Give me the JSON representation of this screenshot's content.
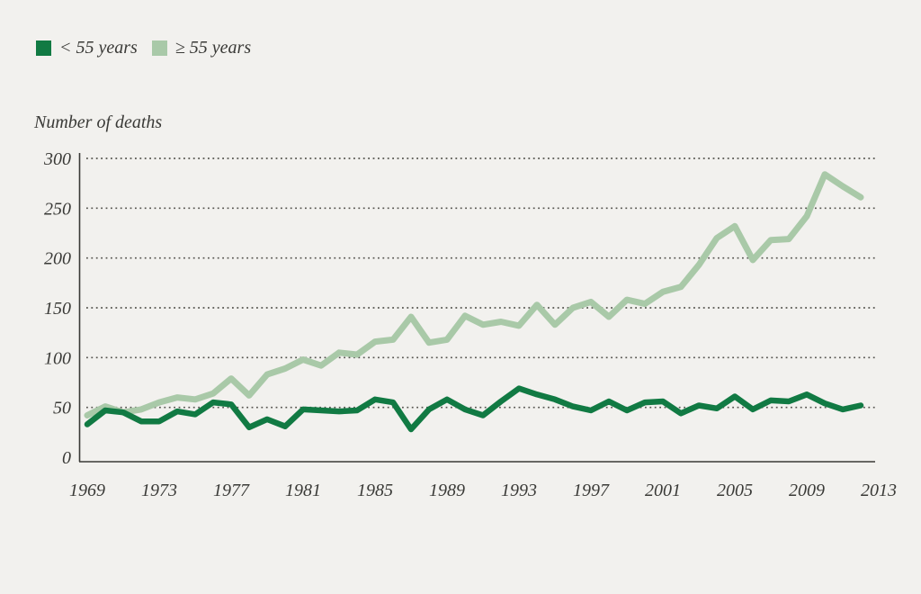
{
  "chart_data": {
    "type": "line",
    "axis_title": "Number of deaths",
    "legend_position": "top-left",
    "grid": "dotted-horizontal",
    "ylim": [
      0,
      300
    ],
    "y_ticks": [
      0,
      50,
      100,
      150,
      200,
      250,
      300
    ],
    "x_label_ticks": [
      1969,
      1973,
      1977,
      1981,
      1985,
      1989,
      1993,
      1997,
      2001,
      2005,
      2009,
      2013
    ],
    "x": [
      1969,
      1970,
      1971,
      1972,
      1973,
      1974,
      1975,
      1976,
      1977,
      1978,
      1979,
      1980,
      1981,
      1982,
      1983,
      1984,
      1985,
      1986,
      1987,
      1988,
      1989,
      1990,
      1991,
      1992,
      1993,
      1994,
      1995,
      1996,
      1997,
      1998,
      1999,
      2000,
      2001,
      2002,
      2003,
      2004,
      2005,
      2006,
      2007,
      2008,
      2009,
      2010,
      2011,
      2012
    ],
    "series": [
      {
        "name": "< 55 years",
        "color": "#117a43",
        "values": [
          33,
          47,
          45,
          36,
          36,
          46,
          43,
          55,
          53,
          30,
          38,
          31,
          48,
          47,
          46,
          47,
          58,
          55,
          28,
          48,
          58,
          48,
          42,
          56,
          69,
          63,
          58,
          51,
          47,
          56,
          47,
          55,
          56,
          44,
          52,
          49,
          61,
          48,
          57,
          56,
          63,
          54,
          48,
          52
        ]
      },
      {
        "name": "≥ 55 years",
        "color": "#a9c9a8",
        "values": [
          42,
          51,
          45,
          48,
          55,
          60,
          58,
          64,
          79,
          62,
          83,
          89,
          98,
          92,
          105,
          103,
          116,
          118,
          141,
          115,
          118,
          142,
          133,
          136,
          132,
          153,
          133,
          150,
          156,
          141,
          158,
          154,
          166,
          171,
          193,
          220,
          232,
          198,
          218,
          219,
          242,
          284,
          272,
          261
        ]
      }
    ],
    "colors": {
      "axis": "#3a3a37",
      "grid": "#55544f",
      "text": "#3a3a37",
      "background": "#f2f1ee"
    }
  }
}
